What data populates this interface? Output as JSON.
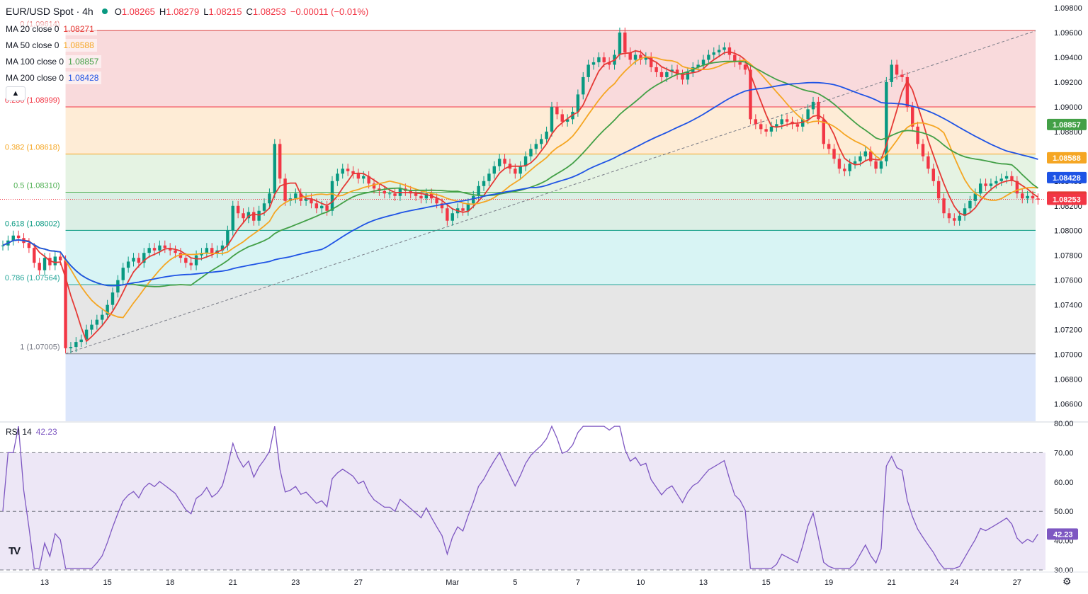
{
  "header": {
    "symbol": "EUR/USD Spot · 4h",
    "open_label": "O",
    "open": "1.08265",
    "high_label": "H",
    "high": "1.08279",
    "low_label": "L",
    "low": "1.08215",
    "close_label": "C",
    "close": "1.08253",
    "change": "−0.00011 (−0.01%)"
  },
  "ma_legend": [
    {
      "label": "MA 20 close 0",
      "value": "1.08271",
      "color": "#e53935"
    },
    {
      "label": "MA 50 close 0",
      "value": "1.08588",
      "color": "#f5a623"
    },
    {
      "label": "MA 100 close 0",
      "value": "1.08857",
      "color": "#43a047"
    },
    {
      "label": "MA 200 close 0",
      "value": "1.08428",
      "color": "#1e53e5"
    }
  ],
  "rsi_legend": {
    "label": "RSI 14",
    "value": "42.23"
  },
  "icons": {
    "collapse": "chevron-up-icon",
    "logo": "tradingview-logo-icon",
    "settings": "gear-icon"
  },
  "colors": {
    "up": "#089981",
    "down": "#f23645",
    "rsi": "#7e57c2",
    "rsi_band": "#ede7f6"
  },
  "chart_data": {
    "type": "candlestick",
    "price_axis": {
      "ticks": [
        "1.09800",
        "1.09600",
        "1.09400",
        "1.09200",
        "1.09000",
        "1.08800",
        "1.08600",
        "1.08400",
        "1.08200",
        "1.08000",
        "1.07800",
        "1.07600",
        "1.07400",
        "1.07200",
        "1.07000",
        "1.06800",
        "1.06600"
      ],
      "range": [
        1.0646,
        1.0984
      ]
    },
    "x_axis": {
      "ticks": [
        {
          "label": "13",
          "bar": 8
        },
        {
          "label": "15",
          "bar": 20
        },
        {
          "label": "18",
          "bar": 32
        },
        {
          "label": "21",
          "bar": 44
        },
        {
          "label": "23",
          "bar": 56
        },
        {
          "label": "27",
          "bar": 68
        },
        {
          "label": "Mar",
          "bar": 86
        },
        {
          "label": "5",
          "bar": 98
        },
        {
          "label": "7",
          "bar": 110
        },
        {
          "label": "10",
          "bar": 122
        },
        {
          "label": "13",
          "bar": 134
        },
        {
          "label": "15",
          "bar": 146
        },
        {
          "label": "19",
          "bar": 158
        },
        {
          "label": "21",
          "bar": 170
        },
        {
          "label": "24",
          "bar": 182
        },
        {
          "label": "27",
          "bar": 194
        }
      ],
      "bar_count": 197
    },
    "closes": [
      1.0788,
      1.0792,
      1.0796,
      1.0794,
      1.079,
      1.0786,
      1.0774,
      1.0768,
      1.0778,
      1.0772,
      1.0779,
      1.0776,
      1.0705,
      1.0706,
      1.071,
      1.0712,
      1.072,
      1.0724,
      1.0728,
      1.0732,
      1.074,
      1.075,
      1.076,
      1.077,
      1.0775,
      1.0778,
      1.0774,
      1.0782,
      1.0786,
      1.0784,
      1.0788,
      1.0786,
      1.0784,
      1.0782,
      1.0778,
      1.0774,
      1.0772,
      1.078,
      1.0782,
      1.0786,
      1.0782,
      1.0784,
      1.0788,
      1.08,
      1.082,
      1.0814,
      1.081,
      1.0815,
      1.0808,
      1.0816,
      1.0822,
      1.083,
      1.087,
      1.0842,
      1.0824,
      1.0826,
      1.083,
      1.0824,
      1.0826,
      1.0822,
      1.0818,
      1.082,
      1.0816,
      1.084,
      1.0846,
      1.085,
      1.0848,
      1.0846,
      1.0842,
      1.0844,
      1.0838,
      1.0834,
      1.0832,
      1.083,
      1.083,
      1.0828,
      1.0834,
      1.0832,
      1.083,
      1.0828,
      1.0826,
      1.083,
      1.0826,
      1.0822,
      1.0818,
      1.0808,
      1.0814,
      1.0818,
      1.0816,
      1.0822,
      1.0828,
      1.0836,
      1.084,
      1.0846,
      1.0852,
      1.0858,
      1.0854,
      1.085,
      1.0846,
      1.0852,
      1.086,
      1.0866,
      1.087,
      1.0874,
      1.088,
      1.09,
      1.0894,
      1.0888,
      1.089,
      1.0896,
      1.091,
      1.0924,
      1.0934,
      1.0936,
      1.094,
      1.0936,
      1.0934,
      1.0942,
      1.096,
      1.0944,
      1.0938,
      1.0942,
      1.0938,
      1.094,
      1.0932,
      1.0928,
      1.0924,
      1.0928,
      1.093,
      1.0926,
      1.0922,
      1.0928,
      1.0932,
      1.0934,
      1.0938,
      1.0942,
      1.0944,
      1.0946,
      1.0948,
      1.0942,
      1.0936,
      1.0934,
      1.093,
      1.089,
      1.0886,
      1.0882,
      1.088,
      1.0884,
      1.0886,
      1.089,
      1.0888,
      1.0886,
      1.0884,
      1.089,
      1.0898,
      1.0904,
      1.089,
      1.087,
      1.0866,
      1.0858,
      1.085,
      1.0848,
      1.0854,
      1.0856,
      1.086,
      1.0864,
      1.0856,
      1.085,
      1.0856,
      1.092,
      1.0934,
      1.0926,
      1.0924,
      1.09,
      1.0884,
      1.087,
      1.086,
      1.085,
      1.084,
      1.0826,
      1.0814,
      1.081,
      1.0808,
      1.0812,
      1.0818,
      1.0824,
      1.083,
      1.0838,
      1.0836,
      1.0838,
      1.084,
      1.0842,
      1.0844,
      1.084,
      1.083,
      1.0826,
      1.0828,
      1.0826,
      1.0825
    ],
    "moving_averages": {
      "ma20": {
        "last": 1.08271
      },
      "ma50": {
        "last": 1.08588
      },
      "ma100": {
        "last": 1.08857
      },
      "ma200": {
        "last": 1.08428
      }
    },
    "price_tags": [
      {
        "value": 1.08857,
        "label": "1.08857",
        "color": "#43a047"
      },
      {
        "value": 1.08588,
        "label": "1.08588",
        "color": "#f5a623"
      },
      {
        "value": 1.08428,
        "label": "1.08428",
        "color": "#1e53e5"
      },
      {
        "value": 1.08271,
        "label": "1.08271",
        "color": "#e53935"
      },
      {
        "value": 1.08253,
        "label": "1.08253",
        "color": "#f23645"
      }
    ],
    "fibonacci": {
      "levels": [
        {
          "ratio": "0",
          "label": "0 (1.09614)",
          "value": 1.09614,
          "color": "#f7cdd0",
          "line": "#e57373"
        },
        {
          "ratio": "0.236",
          "label": "0.236 (1.08999)",
          "value": 1.08999,
          "color": "#fde6c8",
          "line": "#f23645"
        },
        {
          "ratio": "0.382",
          "label": "0.382 (1.08618)",
          "value": 1.08618,
          "color": "#dcefd9",
          "line": "#f5a623"
        },
        {
          "ratio": "0.5",
          "label": "0.5 (1.08310)",
          "value": 1.0831,
          "color": "#cfe9dc",
          "line": "#4caf50"
        },
        {
          "ratio": "0.618",
          "label": "0.618 (1.08002)",
          "value": 1.08002,
          "color": "#cbf0f0",
          "line": "#089981"
        },
        {
          "ratio": "0.786",
          "label": "0.786 (1.07564)",
          "value": 1.07564,
          "color": "#dedede",
          "line": "#26a69a"
        },
        {
          "ratio": "1",
          "label": "1 (1.07005)",
          "value": 1.07005,
          "color": "#d0ddf9",
          "line": "#787b86"
        }
      ],
      "start_bar": 12,
      "end_bar": 196
    },
    "rsi": {
      "ticks": [
        "80.00",
        "70.00",
        "60.00",
        "50.00",
        "40.00",
        "30.00"
      ],
      "range": [
        30,
        80
      ],
      "band": [
        30,
        70
      ],
      "levels": [
        70,
        50,
        30
      ],
      "last": 42.23
    }
  }
}
